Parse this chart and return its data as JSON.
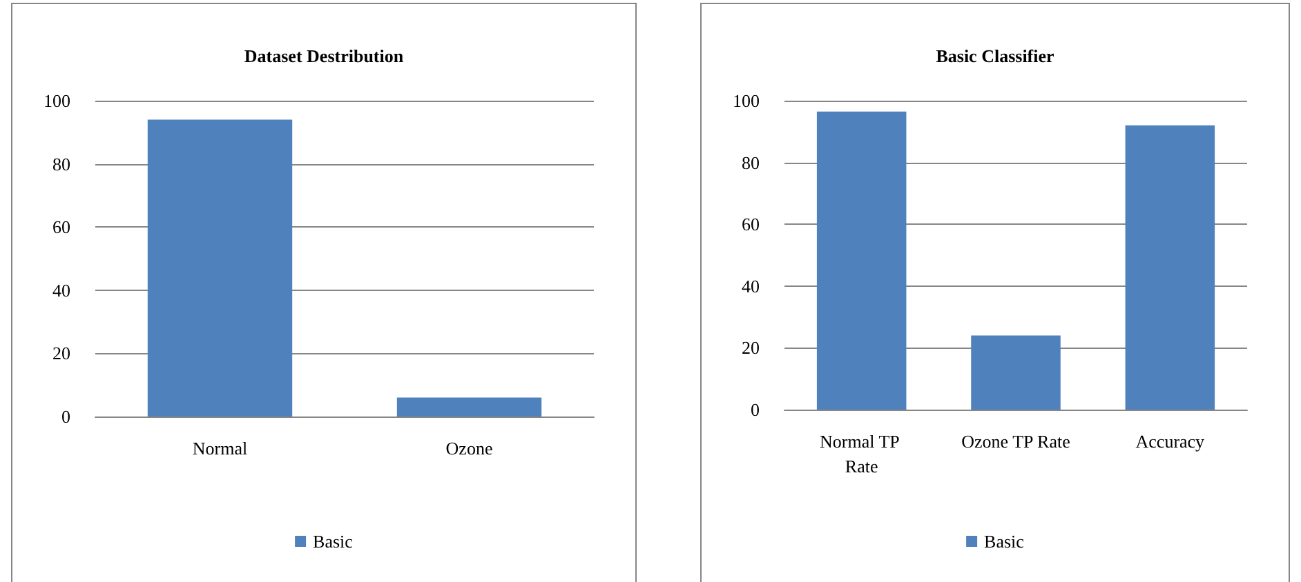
{
  "chart_data": [
    {
      "type": "bar",
      "title": "Dataset Destribution",
      "categories": [
        "Normal",
        "Ozone"
      ],
      "series": [
        {
          "name": "Basic",
          "color": "#4f81bd",
          "values": [
            94,
            6
          ]
        }
      ],
      "ylim": [
        0,
        100
      ],
      "yticks": [
        0,
        20,
        40,
        60,
        80,
        100
      ],
      "grid": "y",
      "legend": "bottom"
    },
    {
      "type": "bar",
      "title": "Basic Classifier",
      "categories": [
        "Normal TP Rate",
        "Ozone TP Rate",
        "Accuracy"
      ],
      "series": [
        {
          "name": "Basic",
          "color": "#4f81bd",
          "values": [
            96.5,
            24,
            92
          ]
        }
      ],
      "ylim": [
        0,
        100
      ],
      "yticks": [
        0,
        20,
        40,
        60,
        80,
        100
      ],
      "grid": "y",
      "legend": "bottom"
    }
  ]
}
